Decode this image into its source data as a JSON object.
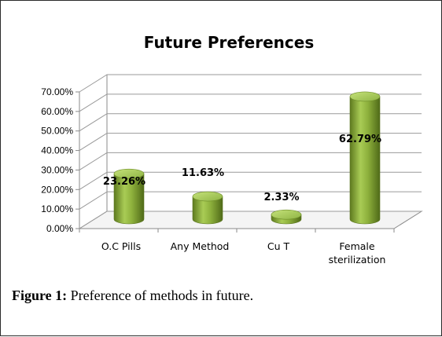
{
  "chart_data": {
    "type": "bar",
    "title": "Future Preferences",
    "categories": [
      "O.C Pills",
      "Any Method",
      "Cu T",
      "Female sterilization"
    ],
    "category_label_lines": [
      [
        "O.C Pills"
      ],
      [
        "Any Method"
      ],
      [
        "Cu T"
      ],
      [
        "Female",
        "sterilization"
      ]
    ],
    "values": [
      23.26,
      11.63,
      2.33,
      62.79
    ],
    "data_labels": [
      "23.26%",
      "11.63%",
      "2.33%",
      "62.79%"
    ],
    "ylim": [
      0,
      70
    ],
    "yticks": [
      "0.00%",
      "10.00%",
      "20.00%",
      "30.00%",
      "40.00%",
      "50.00%",
      "60.00%",
      "70.00%"
    ],
    "grid": true,
    "legend": "none",
    "bar_color": "#8db03c",
    "bar_style": "3d-cylinder"
  },
  "caption": {
    "label": "Figure 1:",
    "text": " Preference of methods in future."
  }
}
